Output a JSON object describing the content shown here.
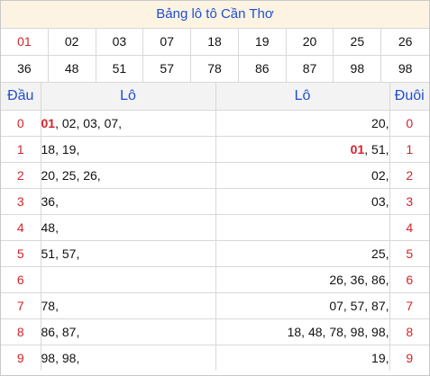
{
  "title": "Bảng lô tô Cần Thơ",
  "numbers": [
    "01",
    "02",
    "03",
    "07",
    "18",
    "19",
    "20",
    "25",
    "26",
    "36",
    "48",
    "51",
    "57",
    "78",
    "86",
    "87",
    "98",
    "98"
  ],
  "highlight": "01",
  "headers": {
    "dau": "Đầu",
    "lo_left": "Lô",
    "lo_right": "Lô",
    "duoi": "Đuôi"
  },
  "rows": [
    {
      "head": "0",
      "left": [
        "01",
        "02",
        "03",
        "07"
      ],
      "right": [
        "20"
      ],
      "tail": "0"
    },
    {
      "head": "1",
      "left": [
        "18",
        "19"
      ],
      "right": [
        "01",
        "51"
      ],
      "tail": "1"
    },
    {
      "head": "2",
      "left": [
        "20",
        "25",
        "26"
      ],
      "right": [
        "02"
      ],
      "tail": "2"
    },
    {
      "head": "3",
      "left": [
        "36"
      ],
      "right": [
        "03"
      ],
      "tail": "3"
    },
    {
      "head": "4",
      "left": [
        "48"
      ],
      "right": [],
      "tail": "4"
    },
    {
      "head": "5",
      "left": [
        "51",
        "57"
      ],
      "right": [
        "25"
      ],
      "tail": "5"
    },
    {
      "head": "6",
      "left": [],
      "right": [
        "26",
        "36",
        "86"
      ],
      "tail": "6"
    },
    {
      "head": "7",
      "left": [
        "78"
      ],
      "right": [
        "07",
        "57",
        "87"
      ],
      "tail": "7"
    },
    {
      "head": "8",
      "left": [
        "86",
        "87"
      ],
      "right": [
        "18",
        "48",
        "78",
        "98",
        "98"
      ],
      "tail": "8"
    },
    {
      "head": "9",
      "left": [
        "98",
        "98"
      ],
      "right": [
        "19"
      ],
      "tail": "9"
    }
  ],
  "colors": {
    "accent_blue": "#1e4fd1",
    "highlight_red": "#d6232a",
    "title_bg": "#fdf3e3"
  }
}
